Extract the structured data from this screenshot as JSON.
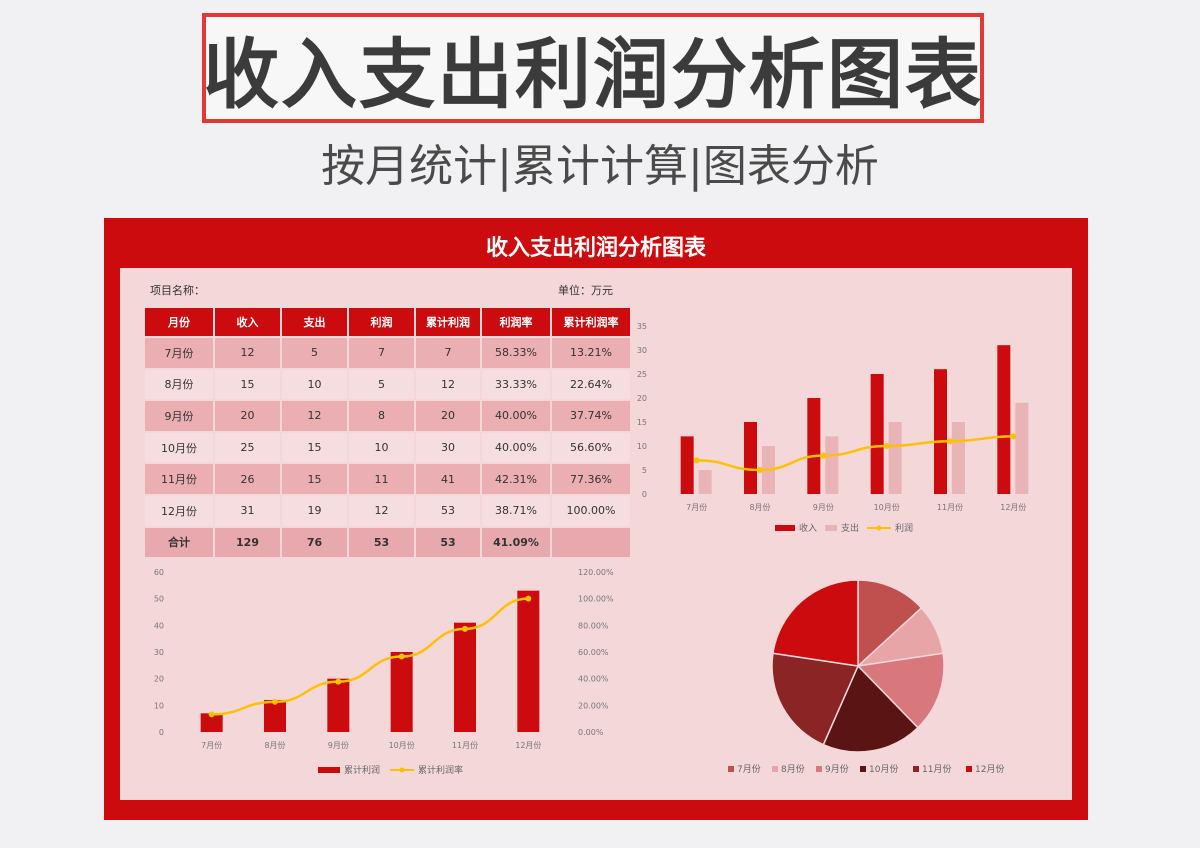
{
  "page": {
    "hero_title": "收入支出利润分析图表",
    "hero_subtitle": "按月统计|累计计算|图表分析"
  },
  "sheet": {
    "title": "收入支出利润分析图表",
    "project_label": "项目名称：",
    "unit_label": "单位：万元"
  },
  "colors": {
    "red": "#cc0b0e",
    "pink": "#e8b4b6",
    "line": "#ffc000",
    "panel": "#f4d7d9"
  },
  "table": {
    "headers": [
      "月份",
      "收入",
      "支出",
      "利润",
      "累计利润",
      "利润率",
      "累计利润率"
    ],
    "rows": [
      [
        "7月份",
        "12",
        "5",
        "7",
        "7",
        "58.33%",
        "13.21%"
      ],
      [
        "8月份",
        "15",
        "10",
        "5",
        "12",
        "33.33%",
        "22.64%"
      ],
      [
        "9月份",
        "20",
        "12",
        "8",
        "20",
        "40.00%",
        "37.74%"
      ],
      [
        "10月份",
        "25",
        "15",
        "10",
        "30",
        "40.00%",
        "56.60%"
      ],
      [
        "11月份",
        "26",
        "15",
        "11",
        "41",
        "42.31%",
        "77.36%"
      ],
      [
        "12月份",
        "31",
        "19",
        "12",
        "53",
        "38.71%",
        "100.00%"
      ]
    ],
    "total": [
      "合计",
      "129",
      "76",
      "53",
      "53",
      "41.09%",
      ""
    ]
  },
  "chart_data": [
    {
      "type": "bar",
      "categories": [
        "7月份",
        "8月份",
        "9月份",
        "10月份",
        "11月份",
        "12月份"
      ],
      "series": [
        {
          "name": "收入",
          "kind": "bar",
          "values": [
            12,
            15,
            20,
            25,
            26,
            31
          ]
        },
        {
          "name": "支出",
          "kind": "bar",
          "values": [
            5,
            10,
            12,
            15,
            15,
            19
          ]
        },
        {
          "name": "利润",
          "kind": "line",
          "values": [
            7,
            5,
            8,
            10,
            11,
            12
          ]
        }
      ],
      "ylim": [
        0,
        35
      ],
      "yticks": [
        "0",
        "5",
        "10",
        "15",
        "20",
        "25",
        "30",
        "35"
      ],
      "legend": "bottom"
    },
    {
      "type": "bar",
      "categories": [
        "7月份",
        "8月份",
        "9月份",
        "10月份",
        "11月份",
        "12月份"
      ],
      "series": [
        {
          "name": "累计利润",
          "kind": "bar",
          "values": [
            7,
            12,
            20,
            30,
            41,
            53
          ]
        },
        {
          "name": "累计利润率",
          "kind": "line",
          "axis": "right",
          "values": [
            13.21,
            22.64,
            37.74,
            56.6,
            77.36,
            100.0
          ]
        }
      ],
      "ylim": [
        0,
        60
      ],
      "yticks": [
        "0",
        "10",
        "20",
        "30",
        "40",
        "50",
        "60"
      ],
      "y2lim": [
        0,
        120
      ],
      "y2ticks": [
        "0.00%",
        "20.00%",
        "40.00%",
        "60.00%",
        "80.00%",
        "100.00%",
        "120.00%"
      ],
      "legend": "bottom"
    },
    {
      "type": "pie",
      "categories": [
        "7月份",
        "8月份",
        "9月份",
        "10月份",
        "11月份",
        "12月份"
      ],
      "values": [
        7,
        5,
        8,
        10,
        11,
        12
      ],
      "colors": [
        "#c0504d",
        "#e8a5a8",
        "#d9787c",
        "#5a1414",
        "#8b2525",
        "#cc0b0e"
      ],
      "legend": "bottom"
    }
  ]
}
